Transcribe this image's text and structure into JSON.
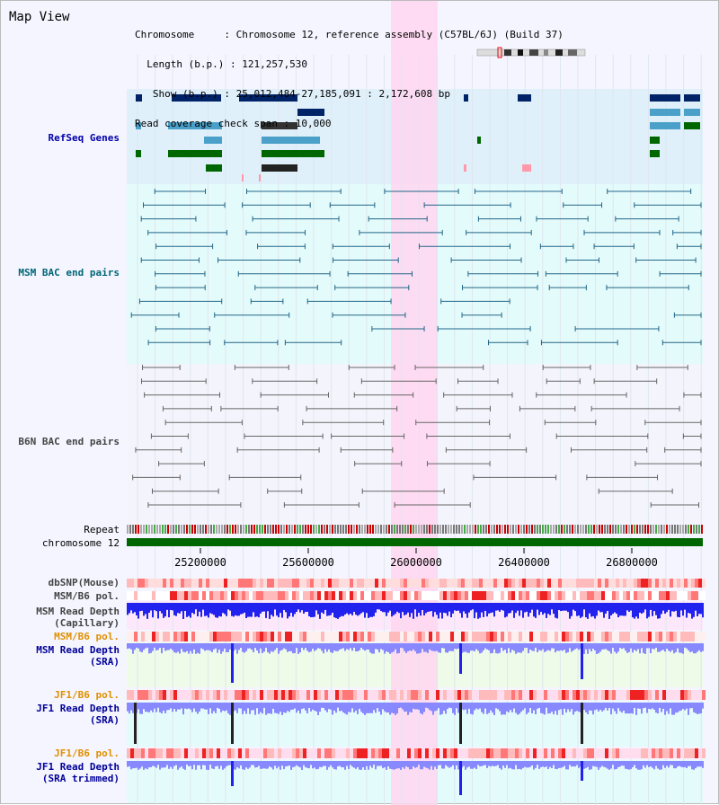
{
  "header": {
    "title": "Map View",
    "info_lines": [
      "Chromosome     : Chromosome 12, reference assembly (C57BL/6J) (Build 37)",
      "  Length (b.p.) : 121,257,530",
      "   Show (b.p.) : 25,012,484-27,185,091 : 2,172,608 bp",
      "Read coverage check span : 10,000"
    ]
  },
  "tracks": {
    "refseq": "RefSeq Genes",
    "msm_bac": "MSM BAC end pairs",
    "b6n_bac": "B6N BAC end pairs",
    "repeat": "Repeat",
    "chromosome": "chromosome 12",
    "dbsnp": "dbSNP(Mouse)",
    "msm_b6_pol_1": "MSM/B6 pol.",
    "msm_depth_cap_1": "MSM Read Depth",
    "msm_depth_cap_2": "(Capillary)",
    "msm_b6_pol_2": "MSM/B6 pol.",
    "msm_depth_sra_1": "MSM Read Depth",
    "msm_depth_sra_2": "(SRA)",
    "jf1_b6_pol_1": "JF1/B6 pol.",
    "jf1_depth_sra_1": "JF1 Read Depth",
    "jf1_depth_sra_2": "(SRA)",
    "jf1_b6_pol_2": "JF1/B6 pol.",
    "jf1_depth_trim_1": "JF1 Read Depth",
    "jf1_depth_trim_2": "(SRA trimmed)"
  },
  "axis": {
    "ticks": [
      "25200000",
      "25600000",
      "26000000",
      "26400000",
      "26800000"
    ]
  },
  "colors": {
    "refseq_bg": "#dff0fa",
    "bac_bg": "#e4fbfb",
    "highlight": "#ffd6f0",
    "gene_dark": "#002266",
    "gene_mid": "#4aa0c8",
    "gene_green": "#006600",
    "msm_line": "#226688",
    "b6n_line": "#666666",
    "chrom_green": "#006600",
    "depth_blue": "#2222ee",
    "depth_light": "#8888ff"
  }
}
